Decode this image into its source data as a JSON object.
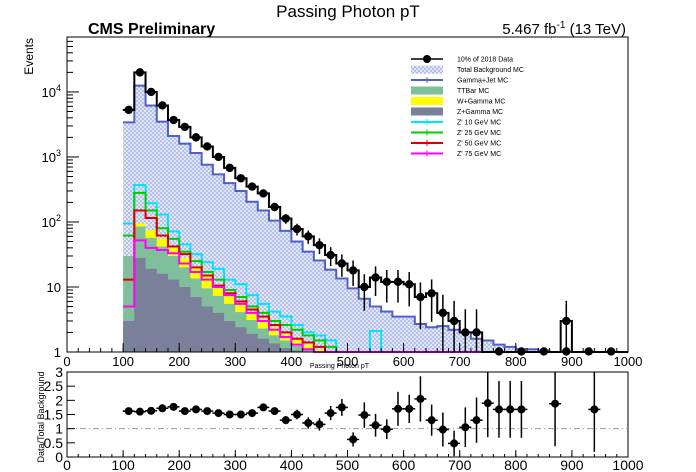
{
  "header": {
    "title": "Passing Photon pT",
    "experiment": "CMS Preliminary",
    "lumi_value": "5.467 fb",
    "lumi_exp": "-1",
    "lumi_energy": " (13 TeV)"
  },
  "colors": {
    "background_fill": "#dfe6f5",
    "background_line": "#5060c8",
    "ttbar": "#7fbf9a",
    "wgamma": "#ffff00",
    "zgamma": "#7a7f9a",
    "zp10": "#00e5ff",
    "zp25": "#00cc00",
    "zp50": "#dd0000",
    "zp75": "#ff00ff"
  },
  "chart_data": [
    {
      "type": "line",
      "title": "Passing Photon pT",
      "xlabel": "Passing Photon pT",
      "ylabel": "Events",
      "xlim": [
        0,
        1000
      ],
      "ylim": [
        1,
        70000
      ],
      "y_scale": "log",
      "x_ticks": [
        "0",
        "100",
        "200",
        "300",
        "400",
        "500",
        "600",
        "700",
        "800",
        "900",
        "1000"
      ],
      "y_ticks": [
        "1",
        "10",
        "10",
        "10",
        "10"
      ],
      "y_tick_exps": [
        "",
        "",
        "2",
        "3",
        "4"
      ],
      "legend_position": "top-right",
      "legend": [
        {
          "label": "10% of 2018 Data",
          "style": "marker"
        },
        {
          "label": "Total Background MC",
          "style": "hatched"
        },
        {
          "label": "Gamma+Jet MC",
          "style": "line",
          "color": "#5060c8"
        },
        {
          "label": "TTBar MC",
          "style": "fill",
          "color": "#7fbf9a"
        },
        {
          "label": "W+Gamma MC",
          "style": "fill",
          "color": "#ffff00"
        },
        {
          "label": "Z+Gamma MC",
          "style": "fill",
          "color": "#7a7f9a"
        },
        {
          "label": "Z' 10 GeV MC",
          "style": "line",
          "color": "#00e5ff"
        },
        {
          "label": "Z' 25 GeV MC",
          "style": "line",
          "color": "#00cc00"
        },
        {
          "label": "Z' 50 GeV MC",
          "style": "line",
          "color": "#dd0000"
        },
        {
          "label": "Z' 75 GeV MC",
          "style": "line",
          "color": "#ff00ff"
        }
      ],
      "bin_edges": [
        100,
        120,
        140,
        160,
        180,
        200,
        220,
        240,
        260,
        280,
        300,
        320,
        340,
        360,
        380,
        400,
        420,
        440,
        460,
        480,
        500,
        520,
        540,
        560,
        580,
        600,
        620,
        640,
        660,
        680,
        700,
        720,
        740,
        760,
        780,
        800,
        820,
        840,
        860,
        880,
        900,
        920,
        940,
        960,
        980,
        1000
      ],
      "series": [
        {
          "name": "10% of 2018 Data",
          "kind": "points",
          "x": [
            110,
            130,
            150,
            170,
            190,
            210,
            230,
            250,
            270,
            290,
            310,
            330,
            350,
            370,
            390,
            410,
            430,
            450,
            470,
            490,
            510,
            530,
            550,
            570,
            590,
            610,
            630,
            650,
            670,
            690,
            710,
            730,
            750,
            770,
            790,
            810,
            830,
            850,
            870,
            890,
            910,
            930,
            950,
            970,
            990
          ],
          "values": [
            5300,
            20000,
            10000,
            6200,
            3700,
            2900,
            2000,
            1450,
            1000,
            680,
            470,
            350,
            275,
            170,
            113,
            78,
            60,
            44,
            31,
            23,
            18,
            10,
            14,
            12,
            12,
            11,
            7,
            8,
            4,
            3,
            2,
            2,
            1,
            1,
            1,
            1,
            1,
            1,
            1,
            3,
            1,
            1,
            1,
            1,
            1
          ]
        },
        {
          "name": "Total Background MC",
          "kind": "step",
          "values": [
            3400,
            12500,
            6200,
            3500,
            2100,
            1600,
            1150,
            760,
            540,
            395,
            300,
            205,
            150,
            105,
            73,
            50,
            35,
            25.5,
            18.5,
            13.5,
            9.5,
            6.6,
            5,
            4.2,
            3.5,
            3.5,
            2.7,
            2.4,
            2.5,
            2.2,
            2.0,
            1.6,
            1.5,
            1.3,
            1.2,
            1.1,
            1.1,
            1.05,
            1.0,
            1.0,
            1.0,
            1.0,
            1.0,
            1.0,
            1.0
          ]
        },
        {
          "name": "Z' 10 GeV MC",
          "kind": "step",
          "values": [
            95,
            370,
            195,
            130,
            72,
            45,
            32,
            24,
            19,
            13,
            11,
            7.5,
            5.5,
            4.2,
            3.5,
            2.6,
            2.0,
            1.8,
            1.5,
            1.0,
            1.0,
            1.0,
            2.1,
            1.0,
            1.0,
            1.0,
            1.0,
            1.0,
            1.0,
            1.0,
            1.0,
            1.0,
            1.0,
            1.0,
            1.0,
            1.0,
            1.0,
            1.0,
            1.0,
            1.0,
            1.0,
            1.0,
            1.0,
            1.0,
            1.0
          ]
        },
        {
          "name": "Z' 25 GeV MC",
          "kind": "step",
          "values": [
            62,
            280,
            150,
            80,
            55,
            35,
            25,
            17,
            13,
            9,
            7,
            5,
            4,
            3,
            2.6,
            2.2,
            1.8,
            1.5,
            1.2,
            1.0,
            1.0,
            1.0,
            1.0,
            1.0,
            1.0,
            1.0,
            1.0,
            1.0,
            1.0,
            1.0,
            1.0,
            1.0,
            1.0,
            1.0,
            1.0,
            1.0,
            1.0,
            1.0,
            1.0,
            1.0,
            1.0,
            1.0,
            1.0,
            1.0,
            1.0
          ]
        },
        {
          "name": "Z' 50 GeV MC",
          "kind": "step",
          "values": [
            13,
            150,
            115,
            62,
            42,
            32,
            20,
            15,
            10.5,
            8,
            6,
            4.5,
            3.5,
            2.6,
            2.0,
            1.6,
            1.4,
            1.2,
            1.0,
            1.0,
            1.0,
            1.0,
            1.0,
            1.0,
            1.0,
            1.0,
            1.0,
            1.0,
            1.0,
            1.0,
            1.0,
            1.0,
            1.0,
            1.0,
            1.0,
            1.0,
            1.0,
            1.0,
            1.0,
            1.0,
            1.0,
            1.0,
            1.0,
            1.0,
            1.0
          ]
        },
        {
          "name": "Z' 75 GeV MC",
          "kind": "step",
          "values": [
            5,
            52,
            40,
            37,
            33,
            23,
            17,
            13,
            10,
            7.5,
            5.5,
            4,
            3,
            2.2,
            1.7,
            1.3,
            1.1,
            1.0,
            1.0,
            1.0,
            1.0,
            1.0,
            1.0,
            1.0,
            1.0,
            1.0,
            1.0,
            1.0,
            1.0,
            1.0,
            1.0,
            1.0,
            1.0,
            1.0,
            1.0,
            1.0,
            1.0,
            1.0,
            1.0,
            1.0,
            1.0,
            1.0,
            1.0,
            1.0,
            1.0
          ]
        },
        {
          "name": "W+Gamma MC",
          "kind": "stack-top",
          "values": [
            30,
            95,
            75,
            55,
            40,
            28,
            20,
            14.5,
            10.5,
            7.6,
            5.7,
            4.2,
            3.2,
            2.4,
            1.9,
            1.6,
            1.3,
            1.1,
            1.0,
            1.0,
            1.0,
            1.0,
            1.0,
            1.0,
            1.0,
            1.0,
            1.0,
            1.0,
            1.0,
            1.0,
            1.0,
            1.0,
            1.0,
            1.0,
            1.0,
            1.0,
            1.0,
            1.0,
            1.0,
            1.0,
            1.0,
            1.0,
            1.0,
            1.0,
            1.0
          ]
        },
        {
          "name": "TTBar MC",
          "kind": "stack-top",
          "values": [
            30,
            85,
            57,
            42,
            30,
            20,
            13.5,
            9.5,
            7.3,
            5.5,
            4.1,
            3.1,
            2.3,
            1.8,
            1.5,
            1.25,
            1.1,
            1.0,
            1.0,
            1.0,
            1.0,
            1.0,
            1.0,
            1.0,
            1.0,
            1.0,
            1.0,
            1.0,
            1.0,
            1.0,
            1.0,
            1.0,
            1.0,
            1.0,
            1.0,
            1.0,
            1.0,
            1.0,
            1.0,
            1.0,
            1.0,
            1.0,
            1.0,
            1.0,
            1.0
          ]
        },
        {
          "name": "Z+Gamma MC",
          "kind": "stack-top",
          "values": [
            3,
            28,
            19,
            16,
            13,
            10,
            7,
            5,
            4,
            3,
            2.4,
            1.9,
            1.6,
            1.35,
            1.15,
            1.05,
            1.0,
            1.0,
            1.0,
            1.0,
            1.0,
            1.0,
            1.0,
            1.0,
            1.0,
            1.0,
            1.0,
            1.0,
            1.0,
            1.0,
            1.0,
            1.0,
            1.0,
            1.0,
            1.0,
            1.0,
            1.0,
            1.0,
            1.0,
            1.0,
            1.0,
            1.0,
            1.0,
            1.0,
            1.0
          ]
        }
      ]
    },
    {
      "type": "scatter",
      "xlabel": "",
      "ylabel": "Data/Total Background",
      "xlim": [
        0,
        1000
      ],
      "ylim": [
        0,
        3
      ],
      "reference_line": 1,
      "x_ticks": [
        "0",
        "100",
        "200",
        "300",
        "400",
        "500",
        "600",
        "700",
        "800",
        "900",
        "1000"
      ],
      "y_ticks": [
        "0",
        "0.5",
        "1",
        "1.5",
        "2",
        "2.5",
        "3"
      ],
      "series": [
        {
          "name": "Data/Total Background",
          "x": [
            110,
            130,
            150,
            170,
            190,
            210,
            230,
            250,
            270,
            290,
            310,
            330,
            350,
            370,
            390,
            410,
            430,
            450,
            470,
            490,
            510,
            530,
            550,
            570,
            590,
            610,
            630,
            650,
            670,
            690,
            710,
            730,
            750,
            770,
            790,
            810,
            870,
            940
          ],
          "values": [
            1.62,
            1.6,
            1.63,
            1.72,
            1.77,
            1.62,
            1.68,
            1.62,
            1.55,
            1.5,
            1.5,
            1.55,
            1.75,
            1.62,
            1.3,
            1.5,
            1.2,
            1.15,
            1.55,
            1.75,
            0.62,
            1.48,
            1.12,
            0.98,
            1.7,
            1.7,
            2.05,
            1.3,
            0.97,
            0.48,
            1.05,
            1.3,
            1.9,
            1.68,
            1.68,
            1.68,
            1.88,
            1.68
          ],
          "errors": [
            0.05,
            0.03,
            0.03,
            0.04,
            0.04,
            0.04,
            0.05,
            0.05,
            0.06,
            0.07,
            0.08,
            0.09,
            0.1,
            0.12,
            0.14,
            0.17,
            0.2,
            0.22,
            0.25,
            0.3,
            0.25,
            0.45,
            0.4,
            0.35,
            0.6,
            0.5,
            0.8,
            0.55,
            0.6,
            0.45,
            0.7,
            0.8,
            1.2,
            1.0,
            1.0,
            1.0,
            1.5,
            1.5
          ]
        }
      ]
    }
  ]
}
